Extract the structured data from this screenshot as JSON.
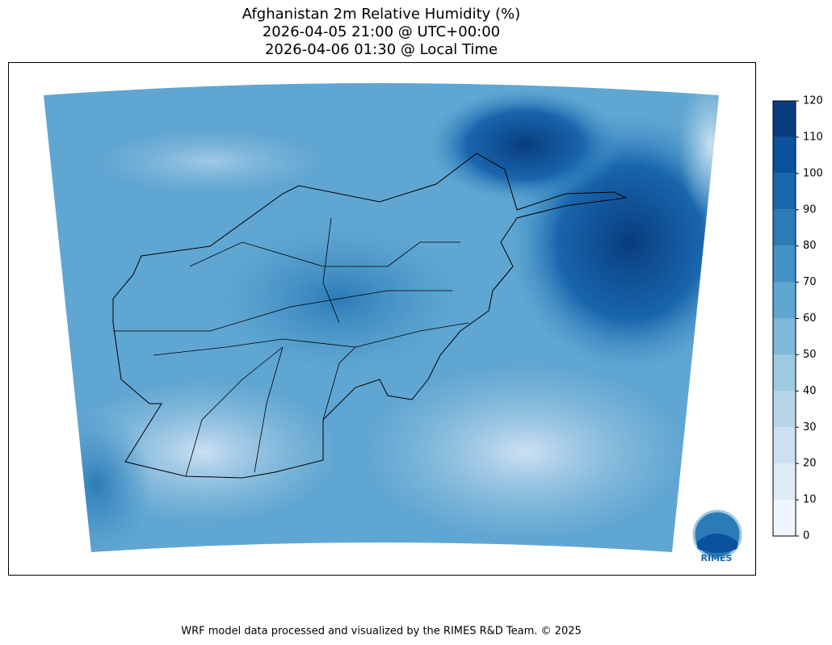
{
  "title": [
    "Afghanistan 2m Relative Humidity (%)",
    "2026-04-05 21:00 @ UTC+00:00",
    "2026-04-06 01:30 @ Local Time"
  ],
  "colorbar": {
    "lim": [
      0,
      120
    ],
    "ticks": [
      0,
      10,
      20,
      30,
      40,
      50,
      60,
      70,
      80,
      90,
      100,
      110,
      120
    ],
    "colors": [
      "#eff6fd",
      "#dfebf7",
      "#cde0f2",
      "#b8d5ea",
      "#9dc9e1",
      "#7fb8da",
      "#60a6d2",
      "#4291c6",
      "#2c7bb6",
      "#1966ad",
      "#0a529d",
      "#083d7f"
    ]
  },
  "logo": "RIMES",
  "footer": "WRF model data processed and visualized by the RIMES R&D Team. © 2025"
}
